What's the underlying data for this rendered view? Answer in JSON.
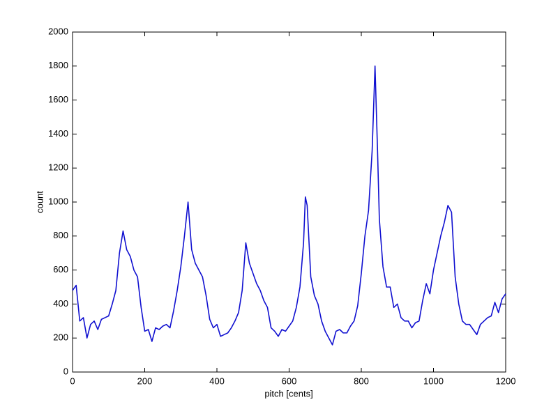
{
  "chart_data": {
    "type": "line",
    "xlabel": "pitch [cents]",
    "ylabel": "count",
    "x": [
      0,
      10,
      20,
      30,
      40,
      50,
      60,
      70,
      80,
      90,
      100,
      110,
      120,
      130,
      140,
      150,
      160,
      170,
      180,
      190,
      200,
      210,
      220,
      230,
      240,
      250,
      260,
      270,
      280,
      290,
      300,
      310,
      320,
      330,
      340,
      350,
      360,
      370,
      380,
      390,
      400,
      410,
      420,
      430,
      440,
      450,
      460,
      470,
      480,
      490,
      500,
      510,
      520,
      530,
      540,
      550,
      560,
      570,
      580,
      590,
      600,
      610,
      620,
      630,
      640,
      645,
      650,
      660,
      670,
      680,
      690,
      700,
      710,
      720,
      730,
      740,
      750,
      760,
      770,
      780,
      790,
      800,
      810,
      820,
      830,
      838,
      845,
      850,
      860,
      870,
      880,
      890,
      900,
      910,
      920,
      930,
      940,
      950,
      960,
      970,
      980,
      990,
      1000,
      1010,
      1020,
      1030,
      1040,
      1050,
      1060,
      1070,
      1080,
      1090,
      1100,
      1110,
      1120,
      1130,
      1140,
      1150,
      1160,
      1170,
      1180,
      1190,
      1200
    ],
    "series": [
      {
        "name": "count",
        "color": "#1010d0",
        "values": [
          480,
          510,
          300,
          320,
          200,
          280,
          300,
          250,
          310,
          320,
          330,
          400,
          480,
          700,
          830,
          720,
          680,
          600,
          560,
          380,
          240,
          250,
          180,
          260,
          250,
          270,
          280,
          260,
          360,
          480,
          620,
          800,
          1000,
          720,
          640,
          600,
          560,
          450,
          310,
          260,
          280,
          210,
          220,
          230,
          260,
          300,
          350,
          480,
          760,
          640,
          580,
          520,
          480,
          420,
          380,
          260,
          240,
          210,
          250,
          240,
          270,
          300,
          380,
          500,
          760,
          1030,
          980,
          560,
          450,
          400,
          300,
          240,
          200,
          160,
          240,
          250,
          230,
          230,
          270,
          300,
          390,
          580,
          800,
          950,
          1300,
          1800,
          1300,
          900,
          620,
          500,
          500,
          380,
          400,
          320,
          300,
          300,
          260,
          290,
          300,
          420,
          520,
          460,
          600,
          700,
          800,
          880,
          980,
          940,
          560,
          400,
          300,
          280,
          280,
          250,
          220,
          280,
          300,
          320,
          330,
          410,
          350,
          430,
          460
        ]
      }
    ],
    "xlim": [
      0,
      1200
    ],
    "xticks": [
      0,
      200,
      400,
      600,
      800,
      1000,
      1200
    ],
    "ylim": [
      0,
      2000
    ],
    "yticks": [
      0,
      200,
      400,
      600,
      800,
      1000,
      1200,
      1400,
      1600,
      1800,
      2000
    ],
    "grid": false
  }
}
